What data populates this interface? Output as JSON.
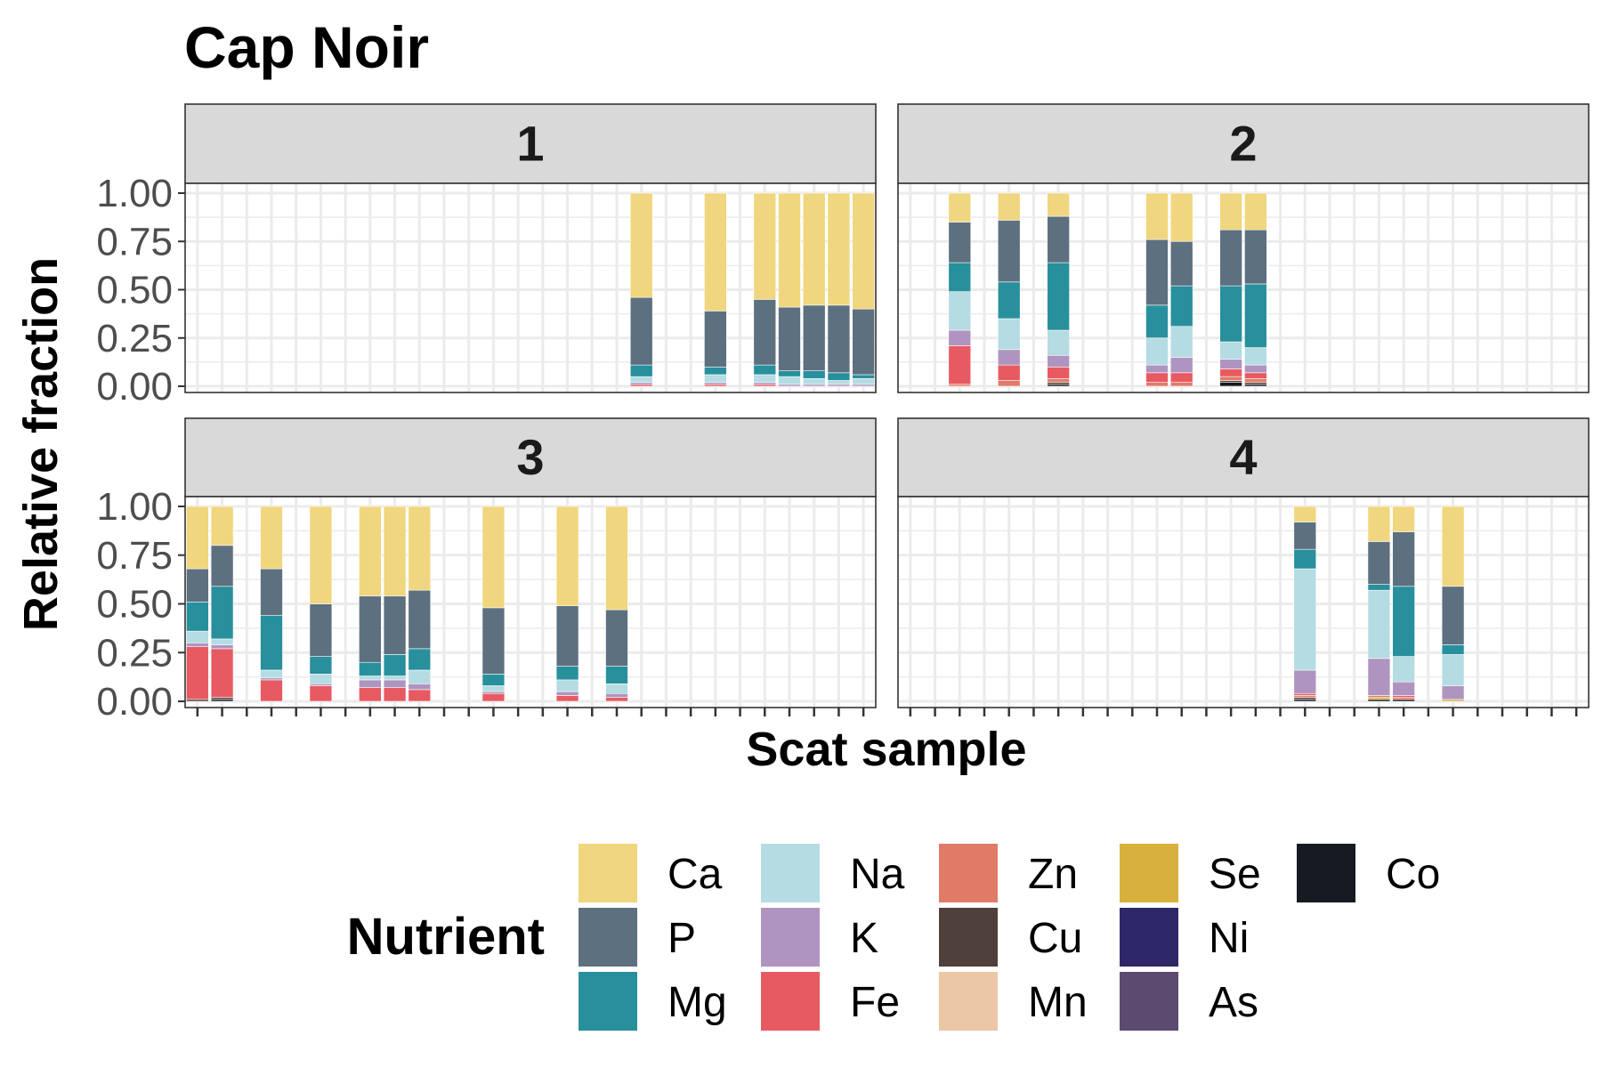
{
  "chart_data": {
    "type": "bar",
    "stacked": "fill",
    "title": "Cap Noir",
    "xlabel": "Scat sample",
    "ylabel": "Relative fraction",
    "ylim": [
      0,
      1
    ],
    "yticks": [
      "0.00",
      "0.25",
      "0.50",
      "0.75",
      "1.00"
    ],
    "legend_title": "Nutrient",
    "legend_position": "bottom",
    "grid": true,
    "n_x_slots": 28,
    "series": [
      {
        "name": "Ca",
        "color": "#F0D67E"
      },
      {
        "name": "P",
        "color": "#5D7080"
      },
      {
        "name": "Mg",
        "color": "#28909C"
      },
      {
        "name": "Na",
        "color": "#B5DBE3"
      },
      {
        "name": "K",
        "color": "#AF94C0"
      },
      {
        "name": "Fe",
        "color": "#E85A62"
      },
      {
        "name": "Zn",
        "color": "#E07B68"
      },
      {
        "name": "Cu",
        "color": "#4F403C"
      },
      {
        "name": "Mn",
        "color": "#EBC7A5"
      },
      {
        "name": "Se",
        "color": "#D8B03E"
      },
      {
        "name": "Ni",
        "color": "#2E2868"
      },
      {
        "name": "As",
        "color": "#5C4A70"
      },
      {
        "name": "Co",
        "color": "#161B22"
      }
    ],
    "panels": [
      {
        "label": "1",
        "bars": [
          {
            "slot": 18,
            "values": {
              "Fe": 0.01,
              "K": 0.01,
              "Na": 0.03,
              "Mg": 0.06,
              "P": 0.35,
              "Ca": 0.54
            }
          },
          {
            "slot": 21,
            "values": {
              "Fe": 0.01,
              "K": 0.01,
              "Na": 0.04,
              "Mg": 0.04,
              "P": 0.29,
              "Ca": 0.61
            }
          },
          {
            "slot": 23,
            "values": {
              "Fe": 0.01,
              "K": 0.01,
              "Na": 0.04,
              "Mg": 0.05,
              "P": 0.34,
              "Ca": 0.55
            }
          },
          {
            "slot": 24,
            "values": {
              "K": 0.01,
              "Na": 0.04,
              "Mg": 0.03,
              "P": 0.33,
              "Ca": 0.59
            }
          },
          {
            "slot": 25,
            "values": {
              "K": 0.01,
              "Na": 0.03,
              "Mg": 0.04,
              "P": 0.34,
              "Ca": 0.58
            }
          },
          {
            "slot": 26,
            "values": {
              "K": 0.01,
              "Na": 0.02,
              "Mg": 0.04,
              "P": 0.35,
              "Ca": 0.58
            }
          },
          {
            "slot": 27,
            "values": {
              "K": 0.01,
              "Na": 0.03,
              "Mg": 0.02,
              "P": 0.34,
              "Ca": 0.6
            }
          }
        ]
      },
      {
        "label": "2",
        "bars": [
          {
            "slot": 2,
            "values": {
              "Zn": 0.01,
              "Fe": 0.2,
              "K": 0.08,
              "Na": 0.2,
              "Mg": 0.15,
              "P": 0.21,
              "Ca": 0.15
            }
          },
          {
            "slot": 4,
            "values": {
              "Zn": 0.03,
              "Fe": 0.08,
              "K": 0.08,
              "Na": 0.16,
              "Mg": 0.19,
              "P": 0.32,
              "Ca": 0.14
            }
          },
          {
            "slot": 6,
            "values": {
              "Co": 0.01,
              "Cu": 0.01,
              "Zn": 0.02,
              "Fe": 0.06,
              "K": 0.06,
              "Na": 0.13,
              "Mg": 0.35,
              "P": 0.24,
              "Ca": 0.12
            }
          },
          {
            "slot": 10,
            "values": {
              "Zn": 0.02,
              "Fe": 0.05,
              "K": 0.04,
              "Na": 0.14,
              "Mg": 0.17,
              "P": 0.34,
              "Ca": 0.24
            }
          },
          {
            "slot": 11,
            "values": {
              "Zn": 0.02,
              "Fe": 0.05,
              "K": 0.08,
              "Na": 0.16,
              "Mg": 0.21,
              "P": 0.23,
              "Ca": 0.25
            }
          },
          {
            "slot": 13,
            "values": {
              "Co": 0.02,
              "Cu": 0.01,
              "Zn": 0.02,
              "Fe": 0.04,
              "K": 0.05,
              "Na": 0.09,
              "Mg": 0.29,
              "P": 0.29,
              "Ca": 0.19
            }
          },
          {
            "slot": 14,
            "values": {
              "Co": 0.01,
              "Cu": 0.01,
              "Zn": 0.02,
              "Fe": 0.03,
              "K": 0.04,
              "Na": 0.09,
              "Mg": 0.33,
              "P": 0.28,
              "Ca": 0.19
            }
          }
        ]
      },
      {
        "label": "3",
        "bars": [
          {
            "slot": 0,
            "values": {
              "Cu": 0.01,
              "Fe": 0.27,
              "K": 0.02,
              "Na": 0.06,
              "Mg": 0.15,
              "P": 0.17,
              "Ca": 0.32
            }
          },
          {
            "slot": 1,
            "values": {
              "Co": 0.01,
              "Cu": 0.01,
              "Fe": 0.25,
              "K": 0.02,
              "Na": 0.03,
              "Mg": 0.27,
              "P": 0.21,
              "Ca": 0.2
            }
          },
          {
            "slot": 3,
            "values": {
              "Fe": 0.11,
              "K": 0.01,
              "Na": 0.04,
              "Mg": 0.28,
              "P": 0.24,
              "Ca": 0.32
            }
          },
          {
            "slot": 5,
            "values": {
              "Fe": 0.08,
              "K": 0.01,
              "Na": 0.05,
              "Mg": 0.09,
              "P": 0.27,
              "Ca": 0.5
            }
          },
          {
            "slot": 7,
            "values": {
              "Fe": 0.07,
              "K": 0.04,
              "Na": 0.02,
              "Mg": 0.07,
              "P": 0.34,
              "Ca": 0.46
            }
          },
          {
            "slot": 8,
            "values": {
              "Fe": 0.07,
              "K": 0.04,
              "Na": 0.02,
              "Mg": 0.11,
              "P": 0.3,
              "Ca": 0.46
            }
          },
          {
            "slot": 9,
            "values": {
              "Fe": 0.06,
              "K": 0.03,
              "Na": 0.07,
              "Mg": 0.11,
              "P": 0.3,
              "Ca": 0.43
            }
          },
          {
            "slot": 12,
            "values": {
              "Fe": 0.04,
              "K": 0.01,
              "Na": 0.03,
              "Mg": 0.06,
              "P": 0.34,
              "Ca": 0.52
            }
          },
          {
            "slot": 15,
            "values": {
              "Fe": 0.03,
              "K": 0.02,
              "Na": 0.06,
              "Mg": 0.07,
              "P": 0.31,
              "Ca": 0.51
            }
          },
          {
            "slot": 17,
            "values": {
              "Fe": 0.02,
              "K": 0.02,
              "Na": 0.05,
              "Mg": 0.09,
              "P": 0.29,
              "Ca": 0.53
            }
          }
        ]
      },
      {
        "label": "4",
        "bars": [
          {
            "slot": 16,
            "values": {
              "Co": 0.01,
              "Cu": 0.01,
              "Fe": 0.01,
              "Zn": 0.01,
              "K": 0.12,
              "Na": 0.52,
              "Mg": 0.1,
              "P": 0.14,
              "Ca": 0.08
            }
          },
          {
            "slot": 19,
            "values": {
              "Co": 0.01,
              "Se": 0.01,
              "Zn": 0.01,
              "K": 0.19,
              "Na": 0.35,
              "Mg": 0.03,
              "P": 0.22,
              "Ca": 0.18
            }
          },
          {
            "slot": 20,
            "values": {
              "Co": 0.01,
              "Zn": 0.01,
              "Fe": 0.01,
              "K": 0.07,
              "Na": 0.13,
              "Mg": 0.36,
              "P": 0.28,
              "Ca": 0.13
            }
          },
          {
            "slot": 22,
            "values": {
              "Se": 0.01,
              "K": 0.07,
              "Na": 0.16,
              "Mg": 0.05,
              "P": 0.3,
              "Ca": 0.41
            }
          }
        ]
      }
    ]
  }
}
